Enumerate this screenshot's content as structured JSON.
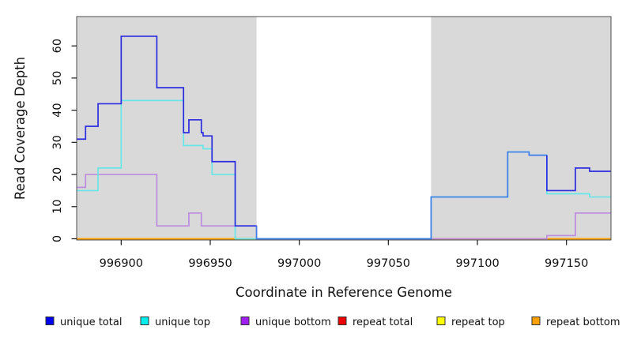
{
  "chart_data": {
    "type": "line",
    "subtype": "step",
    "title": "",
    "xlabel": "Coordinate in Reference Genome",
    "ylabel": "Read Coverage Depth",
    "xlim": [
      996875,
      997175
    ],
    "ylim": [
      0,
      69
    ],
    "x_ticks": [
      996900,
      996950,
      997000,
      997050,
      997100,
      997150
    ],
    "y_ticks": [
      0,
      10,
      20,
      30,
      40,
      50,
      60
    ],
    "grid": false,
    "plot_background": "#ffffff",
    "shaded_band_color": "#d9d9d9",
    "shaded_bands": [
      {
        "x0": 996875,
        "x1": 996976
      },
      {
        "x0": 997074,
        "x1": 997175
      }
    ],
    "unshaded_gap": [
      996976,
      997074
    ],
    "axis_color": "#4d4d4d",
    "legend_position": "bottom",
    "series": [
      {
        "name": "repeat total",
        "line_color": "#dd2222",
        "legend_color": "#ee0000",
        "steps": [
          [
            996875,
            0
          ]
        ]
      },
      {
        "name": "repeat top",
        "line_color": "#f5f500",
        "legend_color": "#ffff00",
        "steps": [
          [
            996875,
            0
          ]
        ]
      },
      {
        "name": "repeat bottom",
        "line_color": "#ff9d00",
        "legend_color": "#ffa200",
        "steps": [
          [
            996875,
            0
          ]
        ]
      },
      {
        "name": "unique bottom",
        "line_color": "#bd8be0",
        "legend_color": "#a020f0",
        "steps": [
          [
            996875,
            16
          ],
          [
            996880,
            20
          ],
          [
            996920,
            4
          ],
          [
            996938,
            8
          ],
          [
            996945,
            4
          ],
          [
            996976,
            0
          ],
          [
            997139,
            1
          ],
          [
            997155,
            8
          ]
        ]
      },
      {
        "name": "unique top",
        "line_color": "#66e6e6",
        "legend_color": "#00eeee",
        "steps": [
          [
            996875,
            15
          ],
          [
            996887,
            22
          ],
          [
            996900,
            43
          ],
          [
            996935,
            29
          ],
          [
            996946,
            28
          ],
          [
            996951,
            20
          ],
          [
            996964,
            0
          ],
          [
            997074,
            13
          ],
          [
            997117,
            27
          ],
          [
            997129,
            26
          ],
          [
            997139,
            14
          ],
          [
            997163,
            13
          ]
        ]
      },
      {
        "name": "unique total",
        "line_color": "#2b2be0",
        "legend_color": "#0000ee",
        "overlap_with_top_color": "#3f7de8",
        "steps": [
          [
            996875,
            31
          ],
          [
            996880,
            35
          ],
          [
            996887,
            42
          ],
          [
            996900,
            63
          ],
          [
            996920,
            47
          ],
          [
            996935,
            33
          ],
          [
            996938,
            37
          ],
          [
            996945,
            33
          ],
          [
            996946,
            32
          ],
          [
            996951,
            24
          ],
          [
            996964,
            4
          ],
          [
            996976,
            0
          ],
          [
            997074,
            13
          ],
          [
            997117,
            27
          ],
          [
            997129,
            26
          ],
          [
            997139,
            15
          ],
          [
            997155,
            22
          ],
          [
            997163,
            21
          ]
        ]
      }
    ],
    "legend": [
      {
        "label": "unique total",
        "color": "#0000ee"
      },
      {
        "label": "unique top",
        "color": "#00eeee"
      },
      {
        "label": "unique bottom",
        "color": "#a020f0"
      },
      {
        "label": "repeat total",
        "color": "#ee0000"
      },
      {
        "label": "repeat top",
        "color": "#ffff00"
      },
      {
        "label": "repeat bottom",
        "color": "#ffa200"
      }
    ]
  }
}
